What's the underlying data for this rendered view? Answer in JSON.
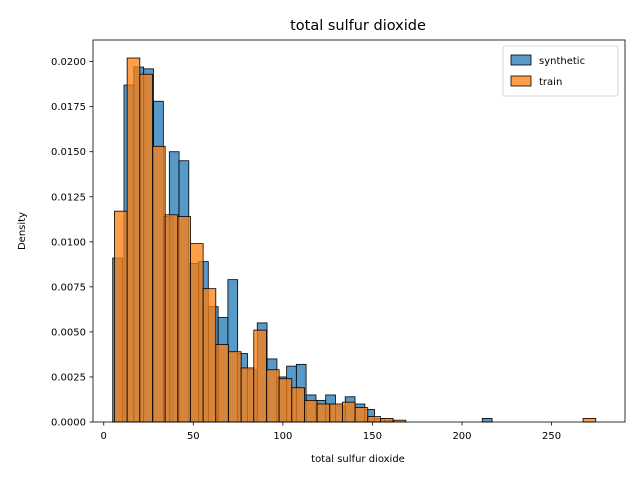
{
  "chart_data": {
    "type": "histogram",
    "title": "total sulfur dioxide",
    "xlabel": "total sulfur dioxide",
    "ylabel": "Density",
    "xlim": [
      -6,
      291
    ],
    "ylim": [
      0,
      0.0212
    ],
    "xticks": [
      0,
      50,
      100,
      150,
      200,
      250
    ],
    "yticks": [
      0.0,
      0.0025,
      0.005,
      0.0075,
      0.01,
      0.0125,
      0.015,
      0.0175,
      0.02
    ],
    "ytick_labels": [
      "0.0000",
      "0.0025",
      "0.0050",
      "0.0075",
      "0.0100",
      "0.0125",
      "0.0150",
      "0.0175",
      "0.0200"
    ],
    "grid": false,
    "legend_position": "top-right",
    "series": [
      {
        "name": "synthetic",
        "color": "#1f77b4",
        "alpha": 0.75,
        "bin_width": 5.47,
        "bins": [
          [
            5,
            0.0091
          ],
          [
            11.3,
            0.0187
          ],
          [
            16.8,
            0.0197
          ],
          [
            22.3,
            0.0196
          ],
          [
            27.8,
            0.0178
          ],
          [
            33.2,
            0.0114
          ],
          [
            36.6,
            0.015
          ],
          [
            42.0,
            0.0145
          ],
          [
            47.5,
            0.0088
          ],
          [
            52.9,
            0.0089
          ],
          [
            58.4,
            0.0064
          ],
          [
            63.9,
            0.0058
          ],
          [
            69.3,
            0.0079
          ],
          [
            74.8,
            0.0038
          ],
          [
            80.2,
            0.0029
          ],
          [
            85.7,
            0.0055
          ],
          [
            91.2,
            0.0035
          ],
          [
            96.6,
            0.0025
          ],
          [
            102.1,
            0.0031
          ],
          [
            107.5,
            0.0032
          ],
          [
            113.0,
            0.0015
          ],
          [
            118.5,
            0.0012
          ],
          [
            123.9,
            0.0015
          ],
          [
            129.4,
            0.0009
          ],
          [
            134.8,
            0.0014
          ],
          [
            140.3,
            0.001
          ],
          [
            145.7,
            0.0007
          ],
          [
            151.2,
            0.0002
          ],
          [
            156.7,
            0.0001
          ],
          [
            211.3,
            0.0002
          ]
        ]
      },
      {
        "name": "train",
        "color": "#ff7f0e",
        "alpha": 0.75,
        "bin_width": 7.07,
        "bins": [
          [
            6,
            0.0117
          ],
          [
            13.07,
            0.0202
          ],
          [
            20.14,
            0.0193
          ],
          [
            27.21,
            0.0153
          ],
          [
            34.28,
            0.0115
          ],
          [
            41.35,
            0.0114
          ],
          [
            48.42,
            0.0099
          ],
          [
            55.49,
            0.0074
          ],
          [
            62.56,
            0.0043
          ],
          [
            69.63,
            0.0039
          ],
          [
            76.7,
            0.003
          ],
          [
            83.77,
            0.0051
          ],
          [
            90.84,
            0.0029
          ],
          [
            97.91,
            0.0024
          ],
          [
            104.98,
            0.0019
          ],
          [
            112.05,
            0.0012
          ],
          [
            119.12,
            0.001
          ],
          [
            126.19,
            0.001
          ],
          [
            133.26,
            0.0011
          ],
          [
            140.33,
            0.0008
          ],
          [
            147.4,
            0.0003
          ],
          [
            154.47,
            0.0002
          ],
          [
            161.54,
            0.0001
          ],
          [
            168.61,
            0.0
          ],
          [
            175.68,
            0.0
          ],
          [
            182.75,
            0.0
          ],
          [
            189.82,
            0.0
          ],
          [
            196.89,
            0.0
          ],
          [
            203.96,
            0.0
          ],
          [
            211.03,
            0.0
          ],
          [
            218.1,
            0.0
          ],
          [
            225.17,
            0.0
          ],
          [
            232.24,
            0.0
          ],
          [
            239.31,
            0.0
          ],
          [
            246.38,
            0.0
          ],
          [
            253.45,
            0.0
          ],
          [
            260.52,
            0.0
          ],
          [
            267.59,
            0.0002
          ]
        ]
      }
    ]
  }
}
